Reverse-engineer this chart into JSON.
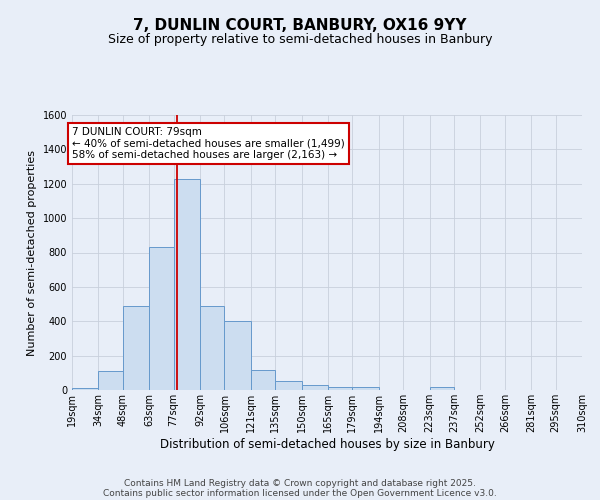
{
  "title": "7, DUNLIN COURT, BANBURY, OX16 9YY",
  "subtitle": "Size of property relative to semi-detached houses in Banbury",
  "xlabel": "Distribution of semi-detached houses by size in Banbury",
  "ylabel": "Number of semi-detached properties",
  "footer_line1": "Contains HM Land Registry data © Crown copyright and database right 2025.",
  "footer_line2": "Contains public sector information licensed under the Open Government Licence v3.0.",
  "bar_edges": [
    19,
    34,
    48,
    63,
    77,
    92,
    106,
    121,
    135,
    150,
    165,
    179,
    194,
    208,
    223,
    237,
    252,
    266,
    281,
    295,
    310
  ],
  "bar_heights": [
    10,
    110,
    490,
    830,
    1230,
    490,
    400,
    115,
    55,
    30,
    20,
    15,
    0,
    0,
    15,
    0,
    0,
    0,
    0,
    0
  ],
  "bar_color": "#ccddf0",
  "bar_edgecolor": "#6699cc",
  "grid_color": "#c8d0dc",
  "vline_x": 79,
  "vline_color": "#cc0000",
  "annotation_line1": "7 DUNLIN COURT: 79sqm",
  "annotation_line2": "← 40% of semi-detached houses are smaller (1,499)",
  "annotation_line3": "58% of semi-detached houses are larger (2,163) →",
  "ylim": [
    0,
    1600
  ],
  "yticks": [
    0,
    200,
    400,
    600,
    800,
    1000,
    1200,
    1400,
    1600
  ],
  "tick_labels": [
    "19sqm",
    "34sqm",
    "48sqm",
    "63sqm",
    "77sqm",
    "92sqm",
    "106sqm",
    "121sqm",
    "135sqm",
    "150sqm",
    "165sqm",
    "179sqm",
    "194sqm",
    "208sqm",
    "223sqm",
    "237sqm",
    "252sqm",
    "266sqm",
    "281sqm",
    "295sqm",
    "310sqm"
  ],
  "bg_color": "#e8eef8",
  "plot_bg_color": "#e8eef8",
  "title_fontsize": 11,
  "subtitle_fontsize": 9,
  "axis_label_fontsize": 8,
  "tick_fontsize": 7,
  "footer_fontsize": 6.5,
  "annotation_fontsize": 7.5
}
